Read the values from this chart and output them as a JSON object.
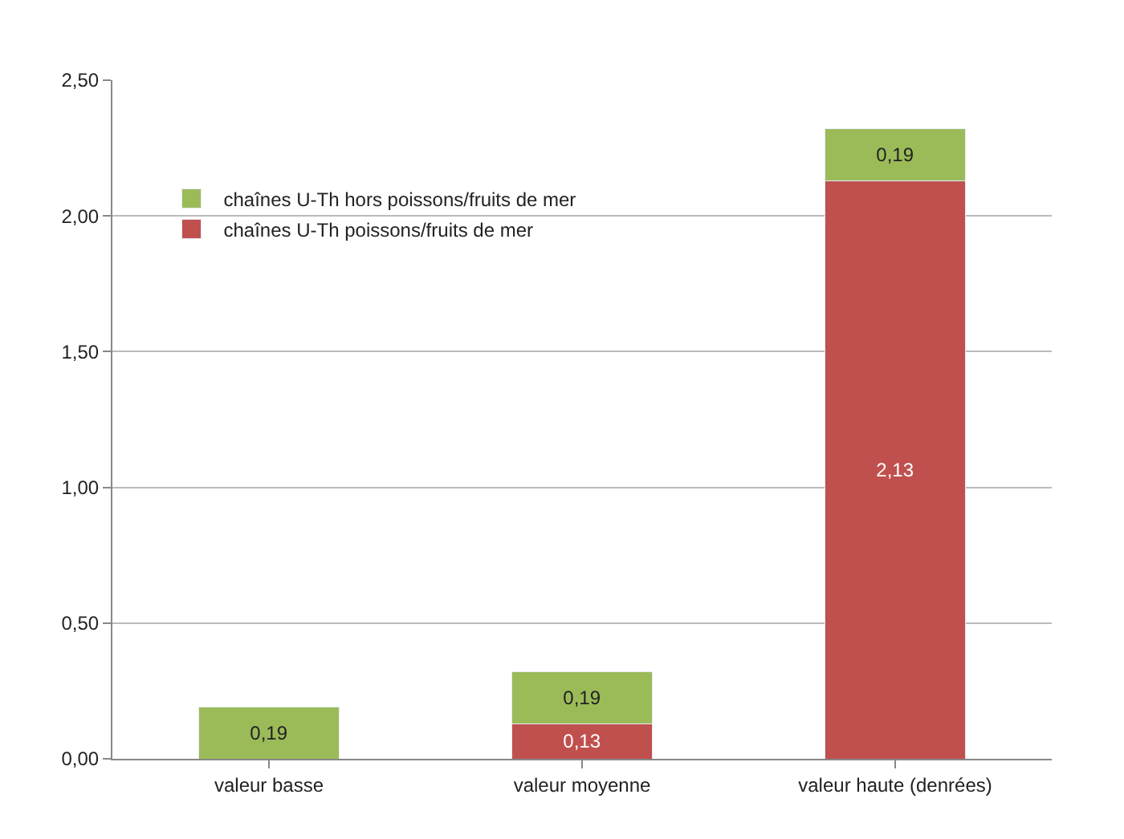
{
  "chart_data": {
    "type": "bar",
    "stacked": true,
    "categories": [
      "valeur basse",
      "valeur moyenne",
      "valeur haute (denrées)"
    ],
    "series": [
      {
        "name": "chaînes U-Th poissons/fruits de mer",
        "color": "#c0504d",
        "values": [
          null,
          0.13,
          2.13
        ],
        "value_labels": [
          null,
          "0,13",
          "2,13"
        ]
      },
      {
        "name": "chaînes U-Th hors poissons/fruits de mer",
        "color": "#9bbb59",
        "values": [
          0.19,
          0.19,
          0.19
        ],
        "value_labels": [
          "0,19",
          "0,19",
          "0,19"
        ]
      }
    ],
    "ylim": [
      0,
      2.5
    ],
    "yticks": [
      {
        "value": 0,
        "label": "0,00"
      },
      {
        "value": 0.5,
        "label": "0,50"
      },
      {
        "value": 1,
        "label": "1,00"
      },
      {
        "value": 1.5,
        "label": "1,50"
      },
      {
        "value": 2,
        "label": "2,00"
      },
      {
        "value": 2.5,
        "label": "2,50"
      }
    ],
    "grid": "y",
    "legend": "top left"
  }
}
